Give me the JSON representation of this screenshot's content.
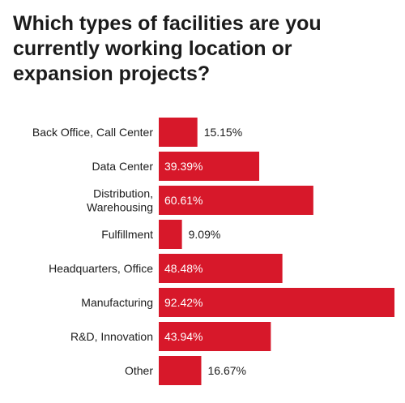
{
  "title": "Which types of facilities are you currently working location or expansion projects?",
  "colors": {
    "bar": "#d7182a",
    "inside_label": "#ffffff",
    "outside_label": "#1b1b1b"
  },
  "chart_data": {
    "type": "bar",
    "orientation": "horizontal",
    "title": "Which types of facilities are you currently working location or expansion projects?",
    "categories": [
      "Back Office, Call Center",
      "Data Center",
      "Distribution, Warehousing",
      "Fulfillment",
      "Headquarters, Office",
      "Manufacturing",
      "R&D, Innovation",
      "Other"
    ],
    "category_lines": [
      [
        "Back Office, Call Center"
      ],
      [
        "Data Center"
      ],
      [
        "Distribution,",
        "Warehousing"
      ],
      [
        "Fulfillment"
      ],
      [
        "Headquarters, Office"
      ],
      [
        "Manufacturing"
      ],
      [
        "R&D, Innovation"
      ],
      [
        "Other"
      ]
    ],
    "values": [
      15.15,
      39.39,
      60.61,
      9.09,
      48.48,
      92.42,
      43.94,
      16.67
    ],
    "value_labels": [
      "15.15%",
      "39.39%",
      "60.61%",
      "9.09%",
      "48.48%",
      "92.42%",
      "43.94%",
      "16.67%"
    ],
    "unit": "%",
    "xlim": [
      0,
      92.42
    ],
    "grid": false,
    "legend": "none"
  }
}
